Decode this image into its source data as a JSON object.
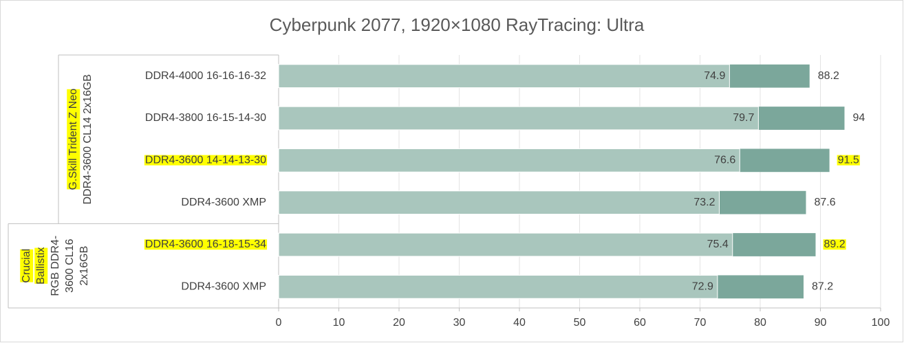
{
  "chart_data": {
    "type": "bar",
    "orientation": "horizontal",
    "overlap": true,
    "title": "Cyberpunk 2077, 1920×1080 RayTracing: Ultra",
    "categories": [
      "DDR4-4000 16-16-16-32",
      "DDR4-3800 16-15-14-30",
      "DDR4-3600 14-14-13-30",
      "DDR4-3600 XMP",
      "DDR4-3600 16-18-15-34",
      "DDR4-3600 XMP"
    ],
    "groups": [
      {
        "lines": [
          "G.Skill Trident Z Neo",
          "DDR4-3600 CL14 2x16GB"
        ],
        "categories": [
          0,
          1,
          2,
          3
        ],
        "highlighted_lines": [
          0
        ]
      },
      {
        "lines": [
          "Crucial",
          "Ballistix",
          "RGB DDR4-",
          "3600 CL16",
          "2x16GB"
        ],
        "categories": [
          4,
          5
        ],
        "highlighted_lines": [
          0,
          1
        ]
      }
    ],
    "series": [
      {
        "color": "#7ba79b",
        "values": [
          88.2,
          94,
          91.5,
          87.6,
          89.2,
          87.2
        ]
      },
      {
        "color": "#a9c6bd",
        "values": [
          74.9,
          79.7,
          76.6,
          73.2,
          75.4,
          72.9
        ]
      }
    ],
    "highlighted_categories": [
      2,
      4
    ],
    "highlight_color": "#ffff00",
    "xlim": [
      0,
      100
    ],
    "xticks": [
      0,
      10,
      20,
      30,
      40,
      50,
      60,
      70,
      80,
      90,
      100
    ],
    "grid": true
  }
}
